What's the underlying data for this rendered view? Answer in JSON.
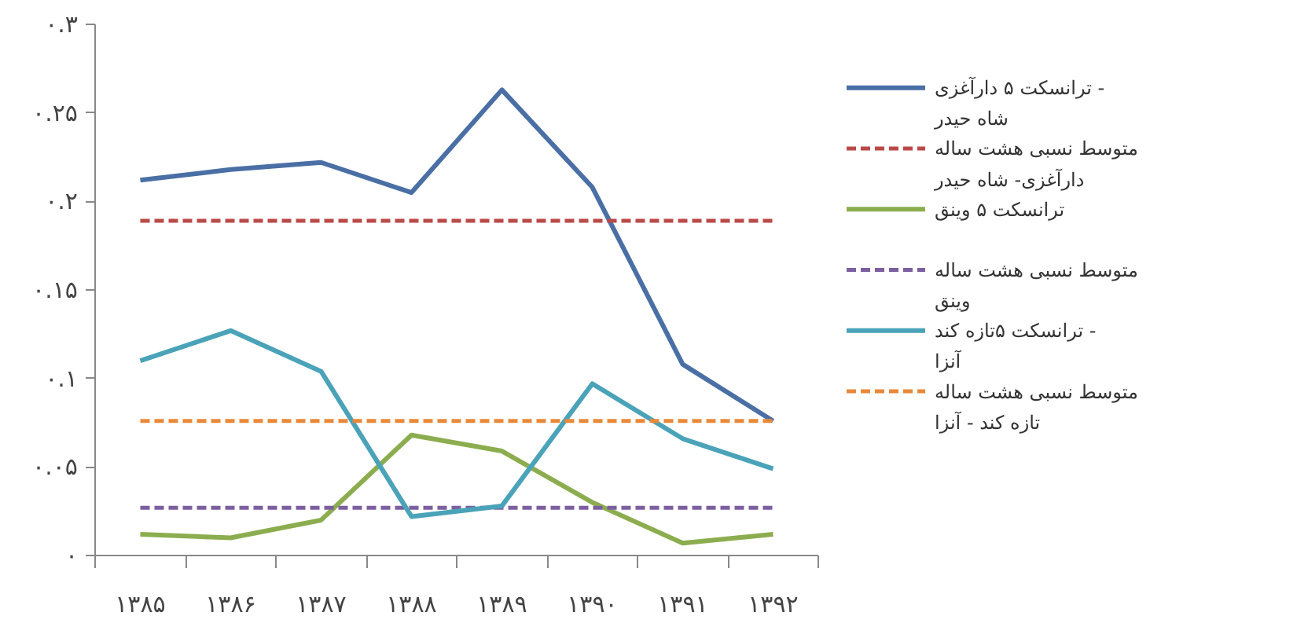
{
  "chart_data": {
    "type": "line",
    "categories": [
      "۱۳۸۵",
      "۱۳۸۶",
      "۱۳۸۷",
      "۱۳۸۸",
      "۱۳۸۹",
      "۱۳۹۰",
      "۱۳۹۱",
      "۱۳۹۲"
    ],
    "series": [
      {
        "name": "ترانسکت ۵ دارآغزی - شاه حیدر",
        "color": "#4a6fa5",
        "line_style": "solid",
        "values": [
          0.212,
          0.218,
          0.222,
          0.205,
          0.263,
          0.208,
          0.108,
          0.076
        ]
      },
      {
        "name": "متوسط نسبی هشت ساله دارآغزی- شاه حیدر",
        "color": "#b94a48",
        "line_style": "dashed",
        "values": [
          0.189,
          0.189,
          0.189,
          0.189,
          0.189,
          0.189,
          0.189,
          0.189
        ]
      },
      {
        "name": "ترانسکت ۵ وینق",
        "color": "#8cad4f",
        "line_style": "solid",
        "values": [
          0.012,
          0.01,
          0.02,
          0.068,
          0.059,
          0.03,
          0.007,
          0.012
        ]
      },
      {
        "name": "متوسط نسبی هشت ساله وینق",
        "color": "#7c5fa0",
        "line_style": "dashed",
        "values": [
          0.027,
          0.027,
          0.027,
          0.027,
          0.027,
          0.027,
          0.027,
          0.027
        ]
      },
      {
        "name": "ترانسکت ۵تازه کند - آنزا",
        "color": "#4aa3b8",
        "line_style": "solid",
        "values": [
          0.11,
          0.127,
          0.104,
          0.022,
          0.028,
          0.097,
          0.066,
          0.049
        ]
      },
      {
        "name": "متوسط نسبی هشت ساله تازه کند - آنزا",
        "color": "#e8893a",
        "line_style": "dashed",
        "values": [
          0.076,
          0.076,
          0.076,
          0.076,
          0.076,
          0.076,
          0.076,
          0.076
        ]
      }
    ],
    "ylim": [
      0,
      0.3
    ],
    "yticks": [
      {
        "value": 0,
        "label": "۰"
      },
      {
        "value": 0.05,
        "label": "۰.۰۵"
      },
      {
        "value": 0.1,
        "label": "۰.۱"
      },
      {
        "value": 0.15,
        "label": "۰.۱۵"
      },
      {
        "value": 0.2,
        "label": "۰.۲"
      },
      {
        "value": 0.25,
        "label": "۰.۲۵"
      },
      {
        "value": 0.3,
        "label": "۰.۳"
      }
    ],
    "grid": false,
    "legend": "right",
    "marker": "none"
  }
}
